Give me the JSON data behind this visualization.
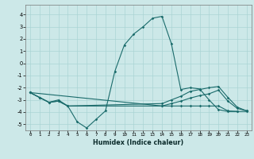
{
  "xlabel": "Humidex (Indice chaleur)",
  "xlim": [
    -0.5,
    23.5
  ],
  "ylim": [
    -5.5,
    4.8
  ],
  "yticks": [
    -5,
    -4,
    -3,
    -2,
    -1,
    0,
    1,
    2,
    3,
    4
  ],
  "xticks": [
    0,
    1,
    2,
    3,
    4,
    5,
    6,
    7,
    8,
    9,
    10,
    11,
    12,
    13,
    14,
    15,
    16,
    17,
    18,
    19,
    20,
    21,
    22,
    23
  ],
  "bg_color": "#cce8e8",
  "grid_color": "#aad4d4",
  "line_color": "#1a6b6b",
  "line1_x": [
    0,
    1,
    2,
    3,
    4,
    5,
    6,
    7,
    8,
    9,
    10,
    11,
    12,
    13,
    14,
    15,
    16,
    17,
    18,
    19,
    20,
    21,
    22,
    23
  ],
  "line1_y": [
    -2.4,
    -2.8,
    -3.2,
    -3.0,
    -3.5,
    -4.8,
    -5.3,
    -4.6,
    -3.9,
    -0.65,
    1.5,
    2.4,
    3.0,
    3.7,
    3.85,
    1.6,
    -2.15,
    -2.0,
    -2.1,
    -3.0,
    -3.8,
    -3.95,
    -3.95,
    null
  ],
  "line2_x": [
    0,
    1,
    2,
    3,
    4,
    14,
    15,
    16,
    17,
    18,
    19,
    20,
    21,
    22,
    23
  ],
  "line2_y": [
    -2.4,
    -2.8,
    -3.2,
    -3.1,
    -3.5,
    -3.5,
    -3.3,
    -3.1,
    -2.85,
    -2.65,
    -2.5,
    -2.2,
    -3.1,
    -3.7,
    -3.9
  ],
  "line3_x": [
    0,
    1,
    2,
    3,
    4,
    14,
    15,
    16,
    17,
    18,
    19,
    20,
    21,
    22,
    23
  ],
  "line3_y": [
    -2.4,
    -2.8,
    -3.2,
    -3.1,
    -3.5,
    -3.3,
    -3.0,
    -2.7,
    -2.3,
    -2.15,
    -2.0,
    -1.9,
    -2.8,
    -3.6,
    -3.9
  ],
  "line4_x": [
    0,
    14,
    15,
    16,
    17,
    18,
    19,
    20,
    21,
    22,
    23
  ],
  "line4_y": [
    -2.4,
    -3.5,
    -3.5,
    -3.5,
    -3.5,
    -3.5,
    -3.5,
    -3.5,
    -3.9,
    -3.95,
    -3.95
  ]
}
